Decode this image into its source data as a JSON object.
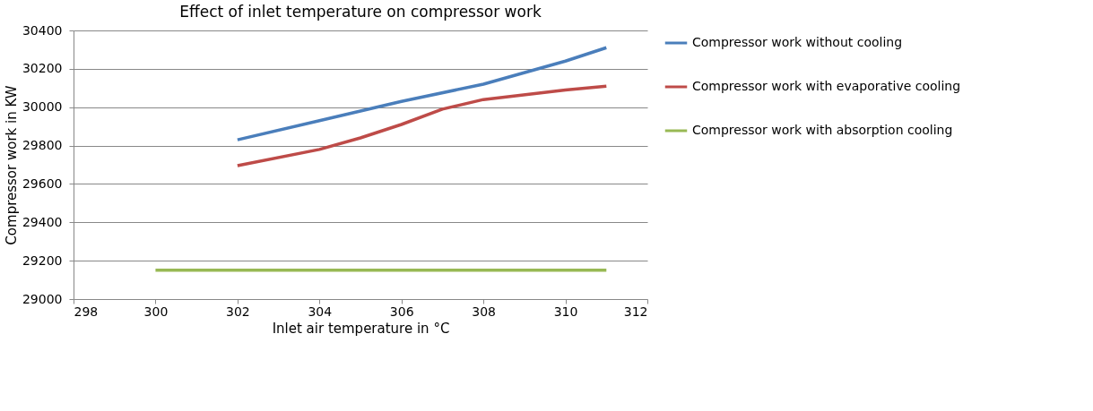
{
  "chart_data": {
    "type": "line",
    "title": "Effect of inlet temperature on compressor work",
    "xlabel": "Inlet air temperature  in °C",
    "ylabel": "Compressor work in KW",
    "xlim": [
      298,
      312
    ],
    "xticks": [
      298,
      300,
      302,
      304,
      306,
      308,
      310,
      312
    ],
    "ylim": [
      29000,
      30400
    ],
    "yticks": [
      29000,
      29200,
      29400,
      29600,
      29800,
      30000,
      30200,
      30400
    ],
    "grid": "y",
    "legend": "right",
    "marker": "none",
    "line_style": "solid",
    "series": [
      {
        "name": "Compressor work without cooling",
        "color": "#4a7ebb",
        "x": [
          302,
          304,
          306,
          308,
          310,
          311
        ],
        "values": [
          29830,
          29930,
          30030,
          30120,
          30240,
          30310
        ]
      },
      {
        "name": "Compressor work with evaporative cooling",
        "color": "#be4b48",
        "x": [
          302,
          304,
          305,
          306,
          307,
          308,
          310,
          311
        ],
        "values": [
          29695,
          29780,
          29840,
          29910,
          29990,
          30040,
          30090,
          30110
        ]
      },
      {
        "name": "Compressor work with absorption cooling",
        "color": "#98b954",
        "x": [
          300,
          311
        ],
        "values": [
          29150,
          29150
        ]
      }
    ]
  }
}
